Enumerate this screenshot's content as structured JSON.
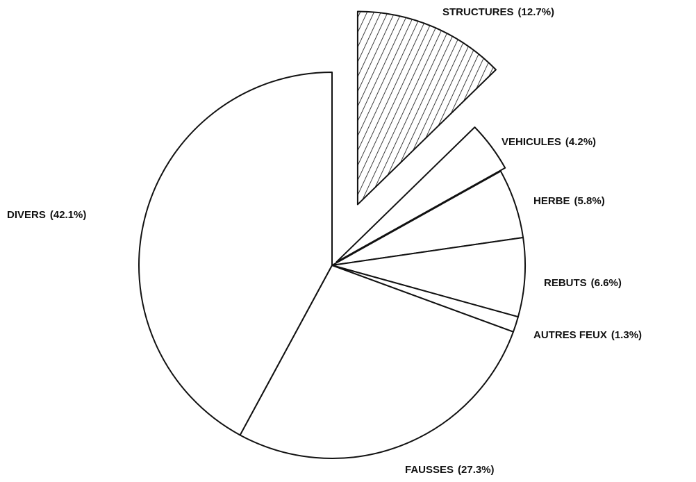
{
  "chart_data": {
    "type": "pie",
    "categories": [
      "STRUCTURES",
      "VEHICULES",
      "HERBE",
      "REBUTS",
      "AUTRES FEUX",
      "FAUSSES",
      "DIVERS"
    ],
    "values": [
      12.7,
      4.2,
      5.8,
      6.6,
      1.3,
      27.3,
      42.1
    ],
    "value_labels": [
      "(12.7%)",
      "(4.2%)",
      "(5.8%)",
      "(6.6%)",
      "(1.3%)",
      "(27.3%)",
      "(42.1%)"
    ]
  }
}
